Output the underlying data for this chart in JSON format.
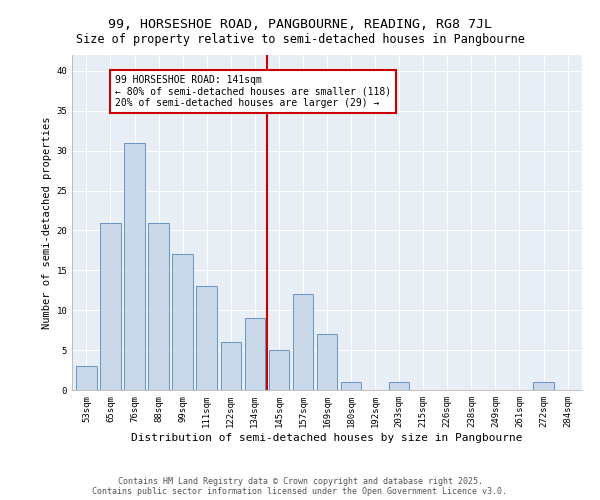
{
  "title1": "99, HORSESHOE ROAD, PANGBOURNE, READING, RG8 7JL",
  "title2": "Size of property relative to semi-detached houses in Pangbourne",
  "xlabel": "Distribution of semi-detached houses by size in Pangbourne",
  "ylabel": "Number of semi-detached properties",
  "categories": [
    "53sqm",
    "65sqm",
    "76sqm",
    "88sqm",
    "99sqm",
    "111sqm",
    "122sqm",
    "134sqm",
    "145sqm",
    "157sqm",
    "169sqm",
    "180sqm",
    "192sqm",
    "203sqm",
    "215sqm",
    "226sqm",
    "238sqm",
    "249sqm",
    "261sqm",
    "272sqm",
    "284sqm"
  ],
  "values": [
    3,
    21,
    31,
    21,
    17,
    13,
    6,
    9,
    5,
    12,
    7,
    1,
    0,
    1,
    0,
    0,
    0,
    0,
    0,
    1,
    0
  ],
  "bar_color": "#c9d9ea",
  "bar_edge_color": "#5588bb",
  "vline_index": 8,
  "vline_color": "#cc0000",
  "annotation_title": "99 HORSESHOE ROAD: 141sqm",
  "annotation_line1": "← 80% of semi-detached houses are smaller (118)",
  "annotation_line2": "20% of semi-detached houses are larger (29) →",
  "annotation_box_color": "#cc0000",
  "annotation_bg": "#ffffff",
  "ylim": [
    0,
    42
  ],
  "yticks": [
    0,
    5,
    10,
    15,
    20,
    25,
    30,
    35,
    40
  ],
  "bg_color": "#e8eef5",
  "footer1": "Contains HM Land Registry data © Crown copyright and database right 2025.",
  "footer2": "Contains public sector information licensed under the Open Government Licence v3.0.",
  "title1_fontsize": 9.5,
  "title2_fontsize": 8.5,
  "xlabel_fontsize": 8,
  "ylabel_fontsize": 7.5,
  "tick_fontsize": 6.5,
  "annotation_fontsize": 7,
  "footer_fontsize": 6
}
